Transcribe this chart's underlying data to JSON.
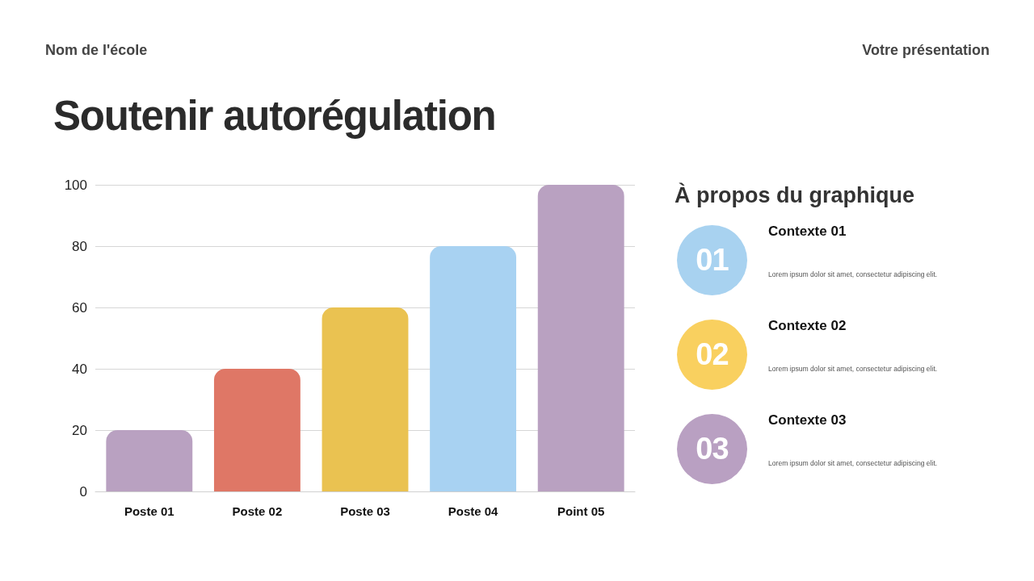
{
  "chart_data": [
    {
      "type": "bar",
      "title": "Soutenir autorégulation",
      "annotations": [
        "Nom de l'école",
        "Votre présentation"
      ],
      "categories": [
        "Poste 01",
        "Poste 02",
        "Poste 03",
        "Poste 04",
        "Point 05"
      ],
      "values": [
        20,
        40,
        60,
        80,
        100
      ],
      "colors": [
        "#b9a1c1",
        "#df7766",
        "#eac251",
        "#a8d2f2",
        "#b9a1c1"
      ],
      "ylim": [
        0,
        100
      ],
      "yticks": [
        0,
        20,
        40,
        60,
        80,
        100
      ],
      "grid": "y"
    },
    {
      "type": "other",
      "title": "À propos du graphique",
      "annotations": [
        "01",
        "Contexte 01",
        "Lorem ipsum dolor sit amet, consectetur adipiscing elit.",
        "02",
        "Contexte 02",
        "Lorem ipsum dolor sit amet, consectetur adipiscing elit.",
        "03",
        "Contexte 03",
        "Lorem ipsum dolor sit amet, consectetur adipiscing elit."
      ],
      "colors": [
        "#a8d2f0",
        "#f9d05f",
        "#b9a0c2"
      ]
    }
  ]
}
